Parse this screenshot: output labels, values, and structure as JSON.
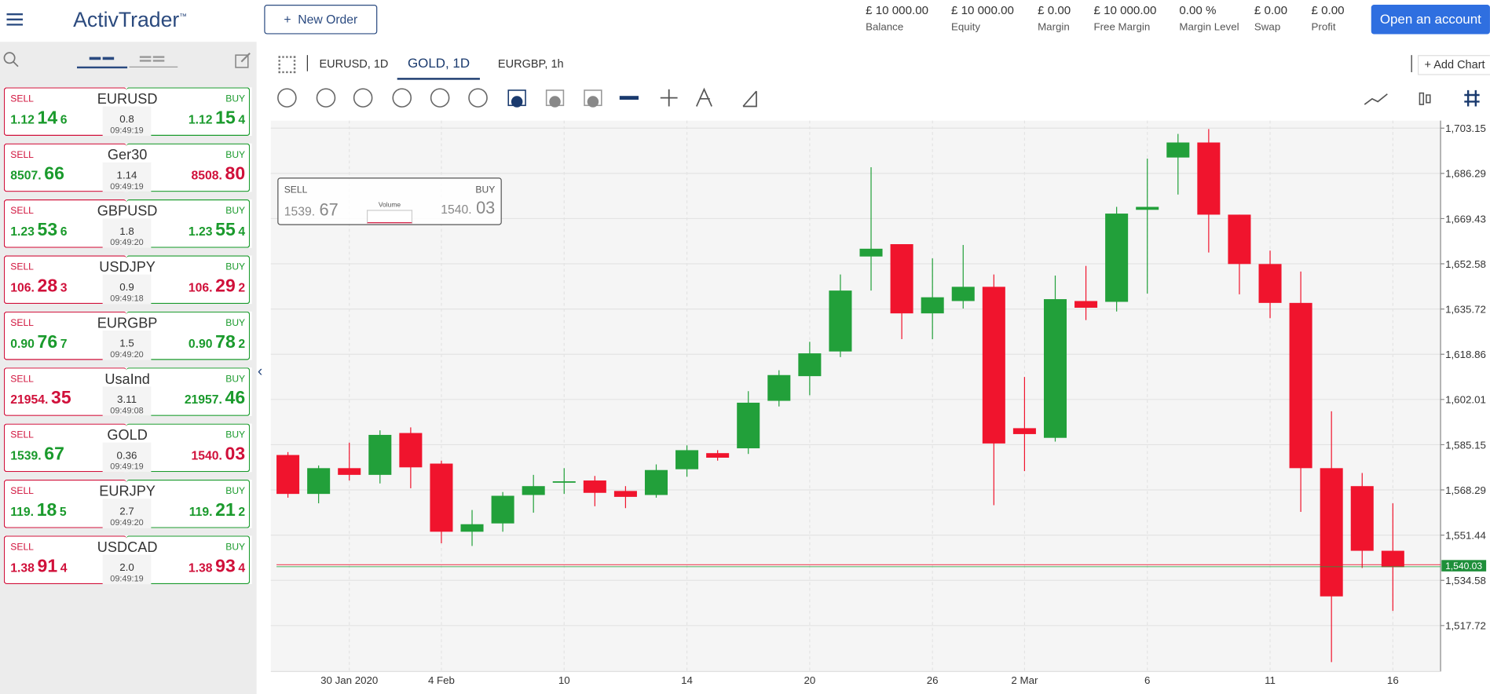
{
  "header": {
    "logo": "ActivTrader",
    "logo_mark": "™",
    "new_order": "New Order",
    "stats": [
      {
        "value": "£ 10 000.00",
        "label": "Balance"
      },
      {
        "value": "£ 10 000.00",
        "label": "Equity"
      },
      {
        "value": "£ 0.00",
        "label": "Margin"
      },
      {
        "value": "£ 10 000.00",
        "label": "Free Margin"
      },
      {
        "value": "0.00 %",
        "label": "Margin Level"
      },
      {
        "value": "£ 0.00",
        "label": "Swap"
      },
      {
        "value": "£ 0.00",
        "label": "Profit"
      }
    ],
    "open_account": "Open an account"
  },
  "watchlist": [
    {
      "symbol": "EURUSD",
      "sell_label": "SELL",
      "buy_label": "BUY",
      "sell": {
        "parts": [
          "1.12",
          "14",
          "6"
        ],
        "color": "#1a9a2c"
      },
      "buy": {
        "parts": [
          "1.12",
          "15",
          "4"
        ],
        "color": "#1a9a2c"
      },
      "spread": "0.8",
      "time": "09:49:19"
    },
    {
      "symbol": "Ger30",
      "sell_label": "SELL",
      "buy_label": "BUY",
      "sell": {
        "parts": [
          "8507.",
          "66"
        ],
        "color": "#1a9a2c"
      },
      "buy": {
        "parts": [
          "8508.",
          "80"
        ],
        "color": "#d0103a"
      },
      "spread": "1.14",
      "time": "09:49:19"
    },
    {
      "symbol": "GBPUSD",
      "sell_label": "SELL",
      "buy_label": "BUY",
      "sell": {
        "parts": [
          "1.23",
          "53",
          "6"
        ],
        "color": "#1a9a2c"
      },
      "buy": {
        "parts": [
          "1.23",
          "55",
          "4"
        ],
        "color": "#1a9a2c"
      },
      "spread": "1.8",
      "time": "09:49:20"
    },
    {
      "symbol": "USDJPY",
      "sell_label": "SELL",
      "buy_label": "BUY",
      "sell": {
        "parts": [
          "106.",
          "28",
          "3"
        ],
        "color": "#d0103a"
      },
      "buy": {
        "parts": [
          "106.",
          "29",
          "2"
        ],
        "color": "#d0103a"
      },
      "spread": "0.9",
      "time": "09:49:18"
    },
    {
      "symbol": "EURGBP",
      "sell_label": "SELL",
      "buy_label": "BUY",
      "sell": {
        "parts": [
          "0.90",
          "76",
          "7"
        ],
        "color": "#1a9a2c"
      },
      "buy": {
        "parts": [
          "0.90",
          "78",
          "2"
        ],
        "color": "#1a9a2c"
      },
      "spread": "1.5",
      "time": "09:49:20"
    },
    {
      "symbol": "UsaInd",
      "sell_label": "SELL",
      "buy_label": "BUY",
      "sell": {
        "parts": [
          "21954.",
          "35"
        ],
        "color": "#d0103a"
      },
      "buy": {
        "parts": [
          "21957.",
          "46"
        ],
        "color": "#1a9a2c"
      },
      "spread": "3.11",
      "time": "09:49:08"
    },
    {
      "symbol": "GOLD",
      "sell_label": "SELL",
      "buy_label": "BUY",
      "sell": {
        "parts": [
          "1539.",
          "67"
        ],
        "color": "#1a9a2c"
      },
      "buy": {
        "parts": [
          "1540.",
          "03"
        ],
        "color": "#d0103a"
      },
      "spread": "0.36",
      "time": "09:49:19"
    },
    {
      "symbol": "EURJPY",
      "sell_label": "SELL",
      "buy_label": "BUY",
      "sell": {
        "parts": [
          "119.",
          "18",
          "5"
        ],
        "color": "#1a9a2c"
      },
      "buy": {
        "parts": [
          "119.",
          "21",
          "2"
        ],
        "color": "#1a9a2c"
      },
      "spread": "2.7",
      "time": "09:49:20"
    },
    {
      "symbol": "USDCAD",
      "sell_label": "SELL",
      "buy_label": "BUY",
      "sell": {
        "parts": [
          "1.38",
          "91",
          "4"
        ],
        "color": "#d0103a"
      },
      "buy": {
        "parts": [
          "1.38",
          "93",
          "4"
        ],
        "color": "#d0103a"
      },
      "spread": "2.0",
      "time": "09:49:19"
    }
  ],
  "tabs": [
    "EURUSD, 1D",
    "GOLD, 1D",
    "EURGBP, 1h"
  ],
  "active_tab": 1,
  "add_chart": "Add Chart",
  "trade_widget": {
    "sell_label": "SELL",
    "sell": [
      "1539.",
      "67"
    ],
    "buy_label": "BUY",
    "buy": [
      "1540.",
      "03"
    ],
    "volume": "Volume"
  },
  "chart_data": {
    "type": "candlestick",
    "categories": [
      null,
      null,
      "30 Jan 2020",
      null,
      null,
      "4 Feb",
      null,
      null,
      null,
      "10",
      null,
      null,
      null,
      "14",
      null,
      null,
      null,
      "20",
      null,
      null,
      null,
      "26",
      null,
      null,
      "2 Mar",
      null,
      null,
      null,
      "6",
      null,
      null,
      null,
      "11",
      null,
      null,
      null,
      "16"
    ],
    "open": [
      1581.3,
      1566.8,
      1576.4,
      1573.9,
      1589.5,
      1578.1,
      1552.7,
      1555.8,
      1566.4,
      1571.4,
      1571.8,
      1567.9,
      1566.4,
      1576.0,
      1582.0,
      1583.8,
      1601.5,
      1610.7,
      1619.9,
      1655.3,
      1659.9,
      1634.1,
      1638.7,
      1644.0,
      1591.3,
      1587.7,
      1638.7,
      1638.4,
      1672.7,
      1692.2,
      1697.8,
      1670.9,
      1652.5,
      1638.0,
      1576.4,
      1569.7,
      1545.6
    ],
    "high": [
      1582.4,
      1577.4,
      1585.9,
      1590.5,
      1591.6,
      1579.2,
      1560.8,
      1567.5,
      1573.9,
      1576.4,
      1573.5,
      1569.7,
      1577.8,
      1584.9,
      1583.1,
      1605.1,
      1612.9,
      1623.5,
      1648.6,
      1688.6,
      1659.9,
      1654.6,
      1659.6,
      1648.6,
      1610.4,
      1648.2,
      1651.8,
      1673.8,
      1691.8,
      1701.0,
      1702.8,
      1670.9,
      1657.5,
      1649.7,
      1597.6,
      1574.6,
      1563.3
    ],
    "low": [
      1565.4,
      1563.3,
      1571.8,
      1570.7,
      1568.9,
      1548.4,
      1547.4,
      1552.7,
      1559.8,
      1566.8,
      1562.2,
      1561.5,
      1565.4,
      1573.2,
      1579.2,
      1581.7,
      1599.4,
      1603.6,
      1617.8,
      1642.6,
      1624.5,
      1624.5,
      1635.9,
      1562.6,
      1575.3,
      1586.3,
      1631.6,
      1634.8,
      1641.5,
      1678.4,
      1656.8,
      1641.2,
      1632.3,
      1560.1,
      1504.1,
      1539.2,
      1523.2
    ],
    "close": [
      1566.8,
      1576.4,
      1573.9,
      1588.8,
      1576.7,
      1552.7,
      1555.5,
      1566.1,
      1569.7,
      1571.5,
      1567.2,
      1565.7,
      1575.7,
      1583.1,
      1580.3,
      1600.8,
      1611.1,
      1619.2,
      1642.6,
      1658.2,
      1634.1,
      1640.1,
      1644.0,
      1585.6,
      1589.1,
      1639.4,
      1636.2,
      1671.3,
      1673.8,
      1697.8,
      1670.9,
      1652.5,
      1638.0,
      1576.4,
      1528.6,
      1545.6,
      1539.5
    ],
    "up_color": "#22a03a",
    "down_color": "#f0142d",
    "ylim": [
      1500.6,
      1705.6
    ],
    "yticks": [
      {
        "value": 1703.15,
        "label": "1,703.15"
      },
      {
        "value": 1686.29,
        "label": "1,686.29"
      },
      {
        "value": 1669.43,
        "label": "1,669.43"
      },
      {
        "value": 1652.58,
        "label": "1,652.58"
      },
      {
        "value": 1635.72,
        "label": "1,635.72"
      },
      {
        "value": 1618.86,
        "label": "1,618.86"
      },
      {
        "value": 1602.01,
        "label": "1,602.01"
      },
      {
        "value": 1585.15,
        "label": "1,585.15"
      },
      {
        "value": 1568.29,
        "label": "1,568.29"
      },
      {
        "value": 1551.44,
        "label": "1,551.44"
      },
      {
        "value": 1534.58,
        "label": "1,534.58"
      },
      {
        "value": 1517.72,
        "label": "1,517.72"
      }
    ],
    "grid": true,
    "price_line": {
      "value": 1540.03,
      "label": "1,540.03"
    }
  }
}
